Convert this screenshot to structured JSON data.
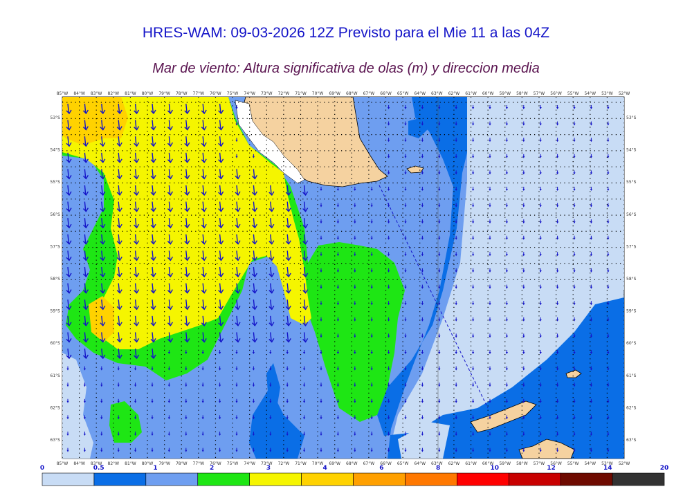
{
  "title": "HRES-WAM: 09-03-2026 12Z Previsto para el Mie 11 a las 04Z",
  "subtitle": "Mar de viento: Altura significativa de olas (m) y direccion media",
  "lon_labels": [
    "85°W",
    "84°W",
    "83°W",
    "82°W",
    "81°W",
    "80°W",
    "79°W",
    "78°W",
    "77°W",
    "76°W",
    "75°W",
    "74°W",
    "73°W",
    "72°W",
    "71°W",
    "70°W",
    "69°W",
    "68°W",
    "67°W",
    "66°W",
    "65°W",
    "64°W",
    "63°W",
    "62°W",
    "61°W",
    "60°W",
    "59°W",
    "58°W",
    "57°W",
    "56°W",
    "55°W",
    "54°W",
    "53°W",
    "52°W"
  ],
  "lat_labels": [
    "53°S",
    "54°S",
    "55°S",
    "56°S",
    "57°S",
    "58°S",
    "59°S",
    "60°S",
    "61°S",
    "62°S",
    "63°S"
  ],
  "colorbar": {
    "labels": [
      "0",
      "0.5",
      "1",
      "2",
      "3",
      "4",
      "6",
      "8",
      "10",
      "12",
      "14",
      "20"
    ],
    "colors": [
      "#c8dcf5",
      "#0a6ee6",
      "#6e9ef0",
      "#1ee614",
      "#f5f500",
      "#ffd200",
      "#ffa000",
      "#ff7800",
      "#ff0000",
      "#c80000",
      "#6e0a00",
      "#323232"
    ]
  },
  "palette": {
    "bg_light": "#c8dcf5",
    "blue_dark": "#0a6ee6",
    "blue_mid": "#6e9ef0",
    "green": "#1ee614",
    "yellow": "#f5f500",
    "gold": "#ffd200",
    "orange": "#ffa000",
    "land": "#f5d2a0",
    "arrow": "#1414c8"
  }
}
